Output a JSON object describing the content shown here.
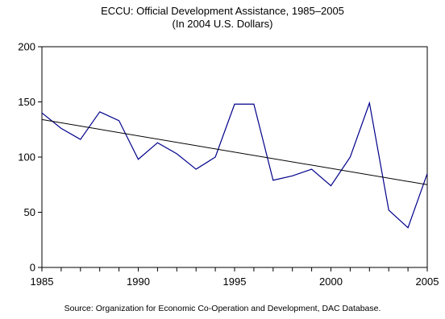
{
  "chart_data": {
    "type": "line",
    "title": "ECCU: Official Development Assistance, 1985–2005",
    "subtitle": "(In 2004 U.S. Dollars)",
    "xlabel": "",
    "ylabel": "",
    "xlim": [
      1985,
      2005
    ],
    "ylim": [
      0,
      200
    ],
    "xticks": [
      1985,
      1990,
      1995,
      2000,
      2005
    ],
    "yticks": [
      0,
      50,
      100,
      150,
      200
    ],
    "grid": false,
    "legend": "none",
    "x": [
      1985,
      1986,
      1987,
      1988,
      1989,
      1990,
      1991,
      1992,
      1993,
      1994,
      1995,
      1996,
      1997,
      1998,
      1999,
      2000,
      2001,
      2002,
      2003,
      2004,
      2005
    ],
    "series": [
      {
        "color": "#00008b",
        "values": [
          140,
          126,
          116,
          141,
          133,
          98,
          113,
          103,
          89,
          100,
          148,
          148,
          79,
          83,
          89,
          74,
          100,
          149,
          52,
          36,
          85
        ]
      }
    ],
    "trendline": {
      "color": "#000000",
      "from": [
        1985,
        134
      ],
      "to": [
        2005,
        75
      ]
    },
    "source": "Source: Organization for Economic Co-Operation and Development, DAC Database."
  }
}
